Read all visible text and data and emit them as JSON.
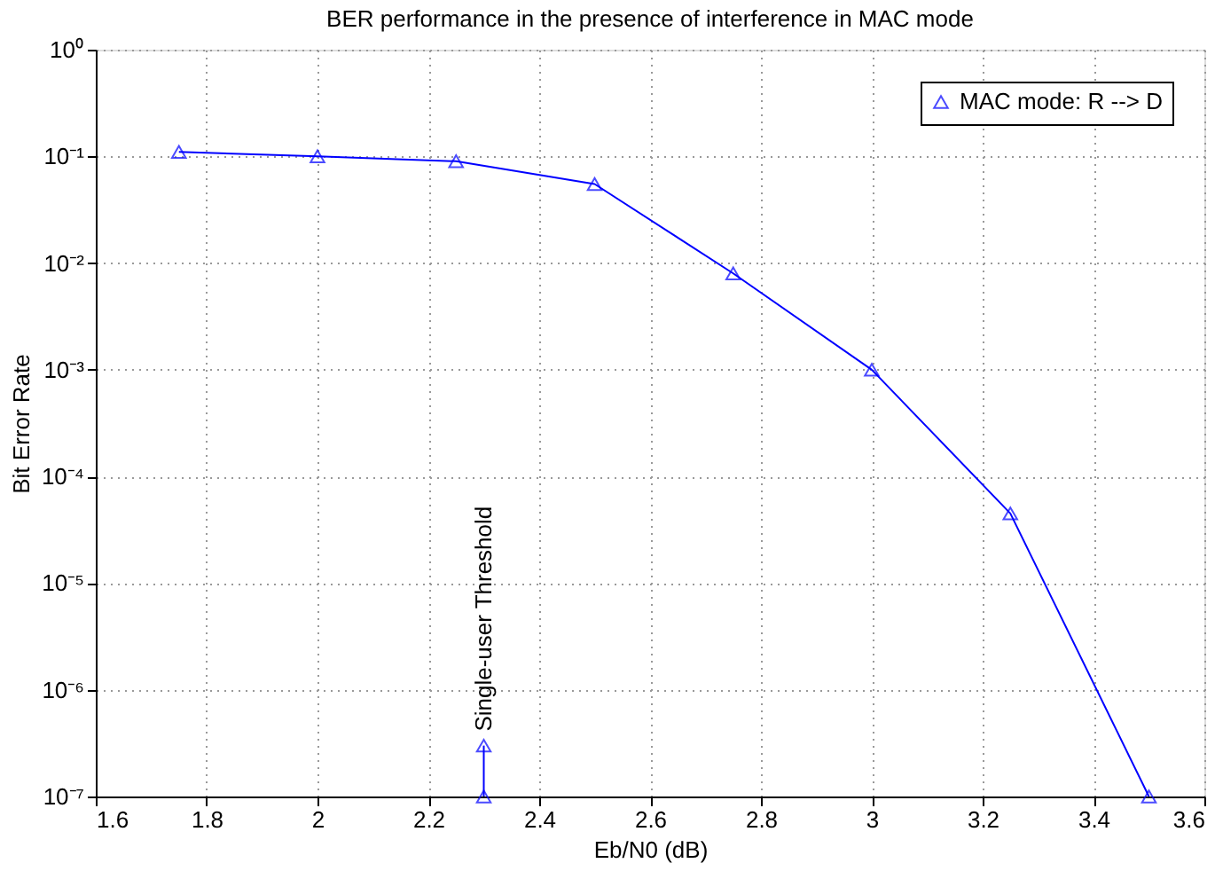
{
  "chart_data": {
    "type": "line",
    "title": "BER performance in the presence of interference in MAC mode",
    "xlabel": "Eb/N0 (dB)",
    "ylabel": "Bit Error Rate",
    "series": [
      {
        "name": "MAC mode: R --> D",
        "color": "#0000ff",
        "x": [
          1.75,
          2,
          2.25,
          2.5,
          2.75,
          3,
          3.25,
          3.5
        ],
        "values": [
          0.11,
          0.1,
          0.09,
          0.055,
          0.008,
          0.001,
          4.5e-05,
          1e-07
        ]
      },
      {
        "color": "#0000ff",
        "x": [
          2.3,
          2.3
        ],
        "values": [
          1e-07,
          3e-07
        ]
      }
    ],
    "annotations": [
      {
        "text": "Single-user Threshold",
        "x": 2.3,
        "y": 3e-07
      }
    ],
    "log": "y",
    "xlim": [
      1.6,
      3.6
    ],
    "xticks": [
      1.6,
      1.8,
      2,
      2.2,
      2.4,
      2.6,
      2.8,
      3,
      3.2,
      3.4,
      3.6
    ],
    "ylim": [
      1e-07,
      1
    ],
    "yticks": [
      {
        "value": 1e-07,
        "label": "10⁻⁷"
      },
      {
        "value": 1e-06,
        "label": "10⁻⁶"
      },
      {
        "value": 1e-05,
        "label": "10⁻⁵"
      },
      {
        "value": 0.0001,
        "label": "10⁻⁴"
      },
      {
        "value": 0.001,
        "label": "10⁻³"
      },
      {
        "value": 0.01,
        "label": "10⁻²"
      },
      {
        "value": 0.1,
        "label": "10⁻¹"
      },
      {
        "value": 1,
        "label": "10⁰"
      }
    ],
    "grid": true,
    "legend": "top right",
    "marker": "triangle",
    "line_style": "solid"
  }
}
